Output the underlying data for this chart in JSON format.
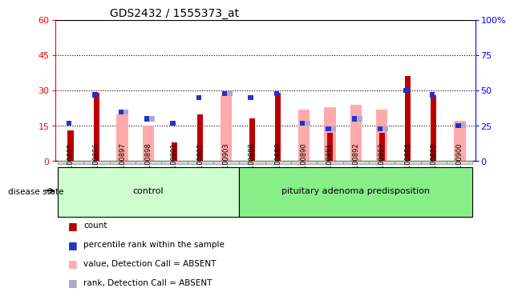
{
  "title": "GDS2432 / 1555373_at",
  "samples": [
    "GSM100895",
    "GSM100896",
    "GSM100897",
    "GSM100898",
    "GSM100901",
    "GSM100902",
    "GSM100903",
    "GSM100888",
    "GSM100889",
    "GSM100890",
    "GSM100891",
    "GSM100892",
    "GSM100893",
    "GSM100894",
    "GSM100899",
    "GSM100900"
  ],
  "count_red": [
    13,
    29,
    0,
    0,
    8,
    20,
    0,
    18,
    29,
    0,
    12,
    0,
    12,
    36,
    28,
    0
  ],
  "percentile_blue": [
    27,
    47,
    35,
    30,
    27,
    45,
    48,
    45,
    48,
    27,
    23,
    30,
    23,
    50,
    47,
    25
  ],
  "value_absent_pink": [
    0,
    0,
    20,
    15,
    0,
    0,
    28,
    0,
    0,
    22,
    23,
    24,
    22,
    0,
    0,
    17
  ],
  "rank_absent_lightblue": [
    0,
    0,
    35,
    30,
    0,
    0,
    48,
    0,
    0,
    27,
    23,
    30,
    23,
    0,
    0,
    25
  ],
  "control_count": 7,
  "ylim_left": [
    0,
    60
  ],
  "ylim_right": [
    0,
    100
  ],
  "yticks_left": [
    0,
    15,
    30,
    45,
    60
  ],
  "yticks_right": [
    0,
    25,
    50,
    75,
    100
  ],
  "color_red": "#bb0000",
  "color_blue": "#2233cc",
  "color_pink": "#ffaaaa",
  "color_lightblue": "#aaaacc",
  "color_sample_bg": "#d4d4d4",
  "color_control_bg": "#ccffcc",
  "color_adenoma_bg": "#88ee88",
  "legend_items": [
    [
      "#bb0000",
      "count"
    ],
    [
      "#2233cc",
      "percentile rank within the sample"
    ],
    [
      "#ffaaaa",
      "value, Detection Call = ABSENT"
    ],
    [
      "#aaaacc",
      "rank, Detection Call = ABSENT"
    ]
  ]
}
